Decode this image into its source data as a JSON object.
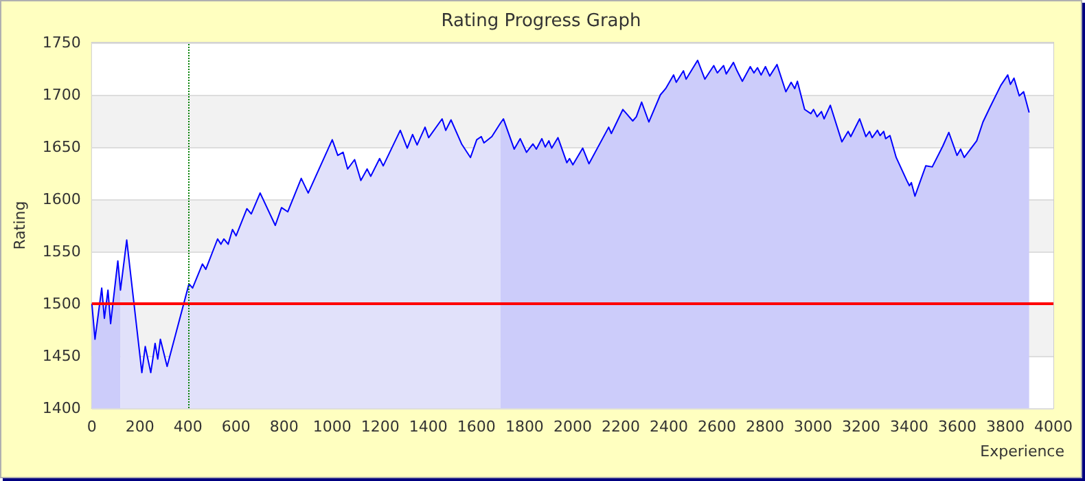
{
  "chart_data": {
    "type": "area",
    "title": "Rating Progress Graph",
    "xlabel": "Experience",
    "ylabel": "Rating",
    "xlim": [
      0,
      4000
    ],
    "xticks": [
      0,
      200,
      400,
      600,
      800,
      1000,
      1200,
      1400,
      1600,
      1800,
      2000,
      2200,
      2400,
      2600,
      2800,
      3000,
      3200,
      3400,
      3600,
      3800,
      4000
    ],
    "ylim": [
      1400,
      1750
    ],
    "yticks": [
      1400,
      1450,
      1500,
      1550,
      1600,
      1650,
      1700,
      1750
    ],
    "grid": "y",
    "marker": "none",
    "ref_lines": [
      {
        "axis": "y",
        "value": 1500,
        "label": null,
        "color": "#ff0000",
        "line_style": "solid"
      },
      {
        "axis": "x",
        "value": 400,
        "label": null,
        "color": "#008000",
        "line_style": "dotted"
      }
    ],
    "series": [
      {
        "color": "#ccccfa",
        "x": [
          0,
          13,
          41,
          52,
          67,
          78,
          108,
          119
        ],
        "values": [
          1500,
          1466,
          1515,
          1486,
          1513,
          1481,
          1541,
          1513
        ]
      },
      {
        "color": "#e1e1fa",
        "x": [
          119,
          145,
          208,
          222,
          245,
          263,
          274,
          285,
          313,
          404,
          419,
          460,
          474,
          523,
          537,
          549,
          567,
          585,
          600,
          645,
          663,
          700,
          763,
          789,
          815,
          871,
          900,
          1000,
          1023,
          1045,
          1064,
          1093,
          1119,
          1145,
          1160,
          1197,
          1212,
          1283,
          1312,
          1334,
          1353,
          1386,
          1401,
          1457,
          1472,
          1494,
          1538,
          1575,
          1601,
          1620,
          1631,
          1664,
          1700
        ],
        "values": [
          1513,
          1561,
          1434,
          1459,
          1434,
          1462,
          1447,
          1466,
          1440,
          1519,
          1515,
          1538,
          1533,
          1562,
          1557,
          1562,
          1557,
          1571,
          1565,
          1591,
          1586,
          1606,
          1575,
          1592,
          1588,
          1620,
          1606,
          1657,
          1642,
          1645,
          1629,
          1638,
          1618,
          1629,
          1622,
          1639,
          1632,
          1666,
          1649,
          1662,
          1652,
          1669,
          1659,
          1677,
          1666,
          1676,
          1653,
          1640,
          1657,
          1660,
          1654,
          1660,
          1673
        ]
      },
      {
        "color": "#ccccfa",
        "x": [
          1700,
          1712,
          1757,
          1782,
          1808,
          1835,
          1849,
          1872,
          1886,
          1901,
          1913,
          1939,
          1976,
          1987,
          2001,
          2042,
          2068,
          2150,
          2161,
          2209,
          2224,
          2250,
          2265,
          2287,
          2317,
          2365,
          2387,
          2420,
          2431,
          2461,
          2472,
          2520,
          2550,
          2587,
          2602,
          2628,
          2639,
          2669,
          2684,
          2706,
          2739,
          2754,
          2769,
          2784,
          2802,
          2820,
          2850,
          2887,
          2909,
          2924,
          2935,
          2965,
          2991,
          3002,
          3017,
          3035,
          3046,
          3072,
          3120,
          3146,
          3157,
          3194,
          3220,
          3235,
          3246,
          3268,
          3279,
          3294,
          3302,
          3320,
          3346,
          3390,
          3401,
          3409,
          3424,
          3469,
          3496,
          3540,
          3565,
          3599,
          3614,
          3629,
          3681,
          3707,
          3736,
          3781,
          3810,
          3821,
          3836,
          3858,
          3876,
          3899
        ],
        "values": [
          1673,
          1677,
          1648,
          1658,
          1645,
          1653,
          1648,
          1658,
          1650,
          1656,
          1649,
          1659,
          1635,
          1639,
          1633,
          1649,
          1634,
          1669,
          1663,
          1686,
          1682,
          1675,
          1679,
          1693,
          1674,
          1700,
          1706,
          1719,
          1712,
          1723,
          1715,
          1733,
          1715,
          1728,
          1721,
          1728,
          1720,
          1731,
          1723,
          1713,
          1727,
          1721,
          1726,
          1719,
          1727,
          1718,
          1729,
          1703,
          1712,
          1706,
          1713,
          1686,
          1682,
          1686,
          1679,
          1684,
          1677,
          1690,
          1655,
          1665,
          1660,
          1677,
          1660,
          1665,
          1659,
          1666,
          1661,
          1665,
          1658,
          1661,
          1640,
          1618,
          1613,
          1616,
          1603,
          1632,
          1631,
          1651,
          1664,
          1642,
          1648,
          1640,
          1656,
          1674,
          1688,
          1709,
          1719,
          1710,
          1716,
          1699,
          1703,
          1683
        ]
      },
      {
        "type": "line",
        "color": "#0000ff",
        "x": [
          0,
          13,
          41,
          52,
          67,
          78,
          108,
          119,
          145,
          208,
          222,
          245,
          263,
          274,
          285,
          313,
          404,
          419,
          460,
          474,
          523,
          537,
          549,
          567,
          585,
          600,
          645,
          663,
          700,
          763,
          789,
          815,
          871,
          900,
          1000,
          1023,
          1045,
          1064,
          1093,
          1119,
          1145,
          1160,
          1197,
          1212,
          1283,
          1312,
          1334,
          1353,
          1386,
          1401,
          1457,
          1472,
          1494,
          1538,
          1575,
          1601,
          1620,
          1631,
          1664,
          1700,
          1712,
          1757,
          1782,
          1808,
          1835,
          1849,
          1872,
          1886,
          1901,
          1913,
          1939,
          1976,
          1987,
          2001,
          2042,
          2068,
          2150,
          2161,
          2209,
          2224,
          2250,
          2265,
          2287,
          2317,
          2365,
          2387,
          2420,
          2431,
          2461,
          2472,
          2520,
          2550,
          2587,
          2602,
          2628,
          2639,
          2669,
          2684,
          2706,
          2739,
          2754,
          2769,
          2784,
          2802,
          2820,
          2850,
          2887,
          2909,
          2924,
          2935,
          2965,
          2991,
          3002,
          3017,
          3035,
          3046,
          3072,
          3120,
          3146,
          3157,
          3194,
          3220,
          3235,
          3246,
          3268,
          3279,
          3294,
          3302,
          3320,
          3346,
          3390,
          3401,
          3409,
          3424,
          3469,
          3496,
          3540,
          3565,
          3599,
          3614,
          3629,
          3681,
          3707,
          3736,
          3781,
          3810,
          3821,
          3836,
          3858,
          3876,
          3899
        ],
        "values": [
          1500,
          1466,
          1515,
          1486,
          1513,
          1481,
          1541,
          1513,
          1561,
          1434,
          1459,
          1434,
          1462,
          1447,
          1466,
          1440,
          1519,
          1515,
          1538,
          1533,
          1562,
          1557,
          1562,
          1557,
          1571,
          1565,
          1591,
          1586,
          1606,
          1575,
          1592,
          1588,
          1620,
          1606,
          1657,
          1642,
          1645,
          1629,
          1638,
          1618,
          1629,
          1622,
          1639,
          1632,
          1666,
          1649,
          1662,
          1652,
          1669,
          1659,
          1677,
          1666,
          1676,
          1653,
          1640,
          1657,
          1660,
          1654,
          1660,
          1673,
          1677,
          1648,
          1658,
          1645,
          1653,
          1648,
          1658,
          1650,
          1656,
          1649,
          1659,
          1635,
          1639,
          1633,
          1649,
          1634,
          1669,
          1663,
          1686,
          1682,
          1675,
          1679,
          1693,
          1674,
          1700,
          1706,
          1719,
          1712,
          1723,
          1715,
          1733,
          1715,
          1728,
          1721,
          1728,
          1720,
          1731,
          1723,
          1713,
          1727,
          1721,
          1726,
          1719,
          1727,
          1718,
          1729,
          1703,
          1712,
          1706,
          1713,
          1686,
          1682,
          1686,
          1679,
          1684,
          1677,
          1690,
          1655,
          1665,
          1660,
          1677,
          1660,
          1665,
          1659,
          1666,
          1661,
          1665,
          1658,
          1661,
          1640,
          1618,
          1613,
          1616,
          1603,
          1632,
          1631,
          1651,
          1664,
          1642,
          1648,
          1640,
          1656,
          1674,
          1688,
          1709,
          1719,
          1710,
          1716,
          1699,
          1703,
          1683
        ]
      }
    ]
  }
}
